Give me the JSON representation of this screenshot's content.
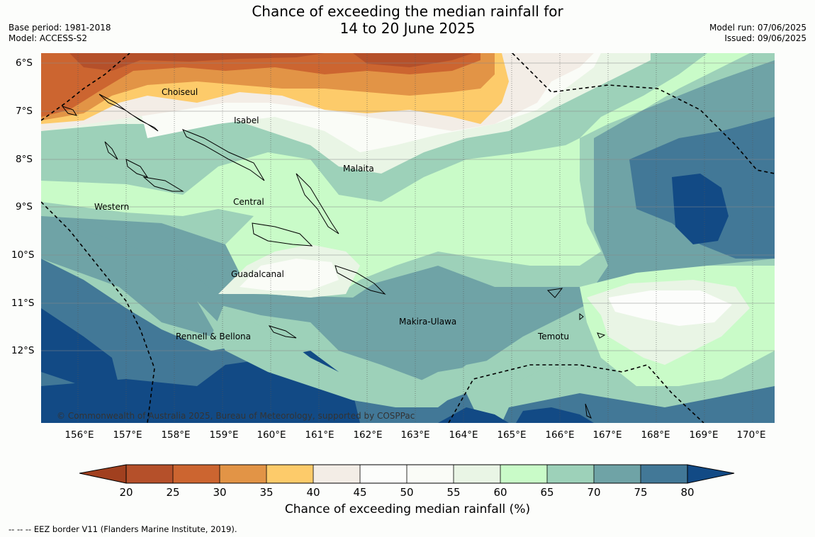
{
  "header": {
    "title_line1": "Chance of exceeding the median rainfall for",
    "title_line2": "14 to 20 June 2025",
    "base_period": "Base period: 1981-2018",
    "model": "Model: ACCESS-S2",
    "model_run": "Model run: 07/06/2025",
    "issued": "Issued: 09/06/2025"
  },
  "map": {
    "copyright": "© Commonwealth of Australia 2025, Bureau of Meteorology, supported by COSPPac",
    "lat_labels": [
      "6°S",
      "7°S",
      "8°S",
      "9°S",
      "10°S",
      "11°S",
      "12°S"
    ],
    "lon_labels": [
      "156°E",
      "157°E",
      "158°E",
      "159°E",
      "160°E",
      "161°E",
      "162°E",
      "163°E",
      "164°E",
      "165°E",
      "166°E",
      "167°E",
      "168°E",
      "169°E",
      "170°E"
    ],
    "provinces": [
      "Choiseul",
      "Isabel",
      "Malaita",
      "Western",
      "Central",
      "Guadalcanal",
      "Makira-Ulawa",
      "Rennell & Bellona",
      "Temotu"
    ]
  },
  "colorbar": {
    "labels": [
      "20",
      "25",
      "30",
      "35",
      "40",
      "45",
      "50",
      "55",
      "60",
      "65",
      "70",
      "75",
      "80"
    ],
    "colors": {
      "below_20": "#a1401f",
      "c20_25": "#b5502a",
      "c25_30": "#cc6530",
      "c30_35": "#e29446",
      "c35_40": "#fdcb6a",
      "c40_45": "#f3ede6",
      "c45_50": "#fcfdfb",
      "c50_55": "#fafcf7",
      "c55_60": "#e9f5e5",
      "c60_65": "#c9fbc8",
      "c65_70": "#9dd1b9",
      "c70_75": "#6fa3a6",
      "c75_80": "#427897",
      "above_80": "#124a85"
    },
    "title": "Chance of exceeding median rainfall (%)"
  },
  "footnote": "--  --  -- EEZ border V11 (Flanders Marine Institute, 2019)."
}
